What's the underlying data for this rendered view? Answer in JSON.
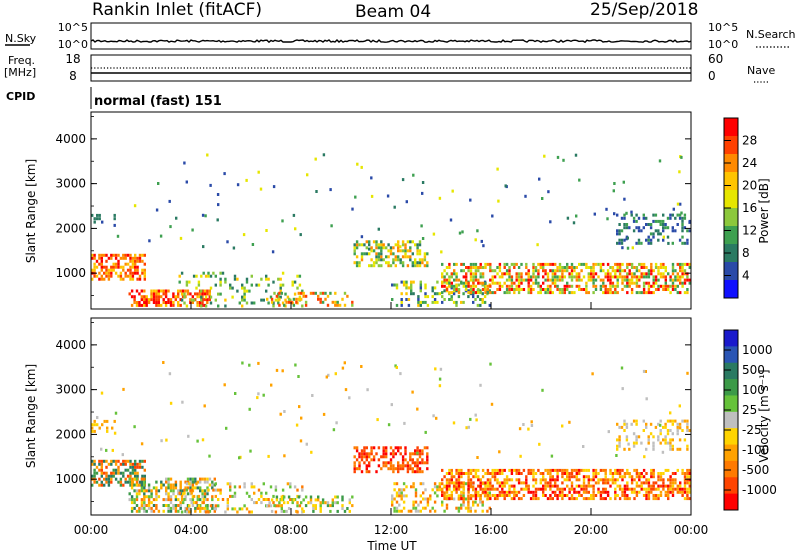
{
  "header": {
    "station": "Rankin Inlet (fitACF)",
    "beam": "Beam 04",
    "date": "25/Sep/2018"
  },
  "nsky_panel": {
    "left_label": "N.Sky",
    "right_label": "N.Search",
    "left_ticks": [
      "10^5",
      "10^0"
    ],
    "right_ticks": [
      "10^5",
      "10^0"
    ]
  },
  "freq_panel": {
    "left_label_line1": "Freq.",
    "left_label_line2": "[MHz]",
    "right_label": "Nave",
    "left_ticks": [
      "18",
      "8"
    ],
    "right_ticks": [
      "60",
      "0"
    ]
  },
  "cpid": {
    "label": "CPID",
    "value": "normal (fast) 151"
  },
  "chart_data": [
    {
      "type": "heatmap",
      "name": "power",
      "ylabel": "Slant Range [km]",
      "ylim": [
        200,
        4600
      ],
      "yticks": [
        "1000",
        "2000",
        "3000",
        "4000"
      ],
      "xlim": [
        0,
        24
      ],
      "colorbar": {
        "label": "Power [dB]",
        "ticks": [
          "28",
          "24",
          "20",
          "16",
          "12",
          "8",
          "4"
        ],
        "colors": [
          "#ff0000",
          "#ff4000",
          "#ff8a00",
          "#ffc400",
          "#e6e600",
          "#8cc83c",
          "#3ea050",
          "#2a7a62",
          "#2a4aa8",
          "#1010ff"
        ]
      }
    },
    {
      "type": "heatmap",
      "name": "velocity",
      "ylabel": "Slant Range [km]",
      "ylim": [
        200,
        4600
      ],
      "yticks": [
        "1000",
        "2000",
        "3000",
        "4000"
      ],
      "xlim": [
        0,
        24
      ],
      "xticks": [
        "00:00",
        "04:00",
        "08:00",
        "12:00",
        "16:00",
        "20:00",
        "00:00"
      ],
      "xlabel": "Time UT",
      "colorbar": {
        "label": "Velocity [m s⁻¹]",
        "ticks": [
          "1000",
          "500",
          "100",
          "25",
          "-25",
          "-100",
          "-500",
          "-1000"
        ],
        "colors": [
          "#1a1acc",
          "#2a55b4",
          "#2a7a62",
          "#3c9a48",
          "#66c23a",
          "#bfbfbf",
          "#ffd400",
          "#ffa200",
          "#ff7a00",
          "#ff4400",
          "#ff0000"
        ]
      }
    }
  ]
}
